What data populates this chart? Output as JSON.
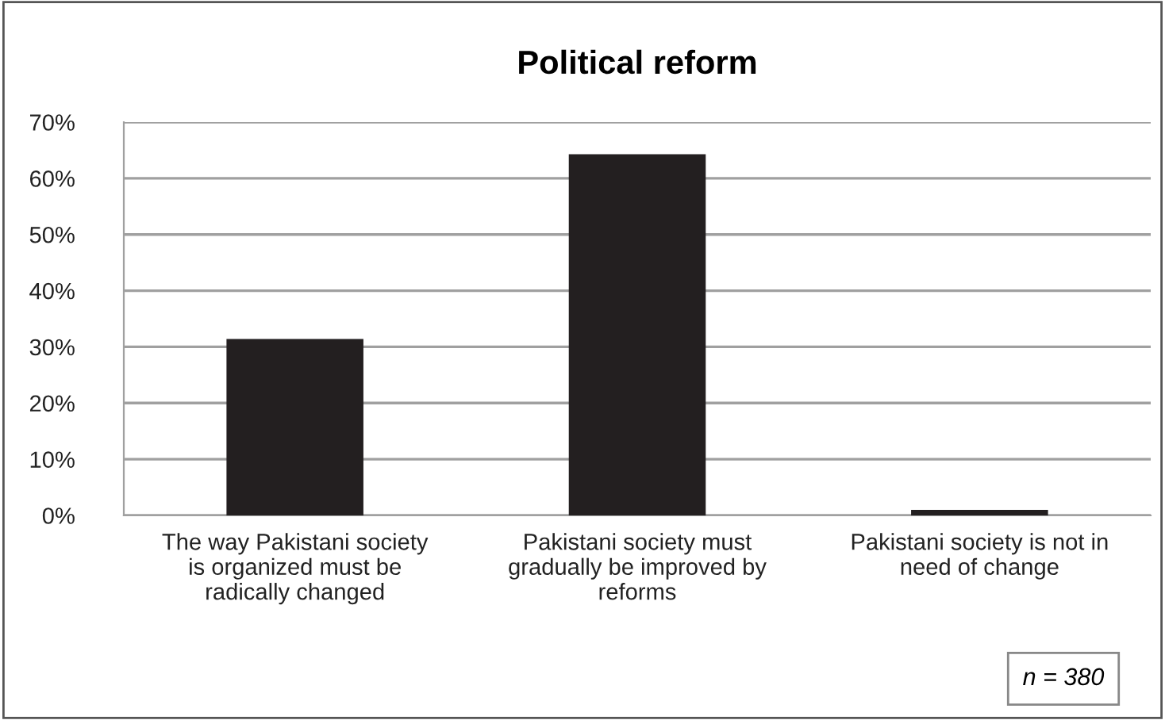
{
  "chart_data": {
    "type": "bar",
    "title": "Political reform",
    "categories": [
      "The way Pakistani society\nis organized must be\nradically changed",
      "Pakistani society must\ngradually be improved by\nreforms",
      "Pakistani society is not in\nneed of change"
    ],
    "values": [
      31.4,
      64.3,
      1
    ],
    "color": "#231f20",
    "ylim": [
      0,
      70
    ],
    "yticks": [
      {
        "value": 0,
        "label": "0%"
      },
      {
        "value": 10,
        "label": "10%"
      },
      {
        "value": 20,
        "label": "20%"
      },
      {
        "value": 30,
        "label": "30%"
      },
      {
        "value": 40,
        "label": "40%"
      },
      {
        "value": 50,
        "label": "50%"
      },
      {
        "value": 60,
        "label": "60%"
      },
      {
        "value": 70,
        "label": "70%"
      }
    ],
    "grid": "y",
    "annotations": [
      "n = 380"
    ]
  }
}
